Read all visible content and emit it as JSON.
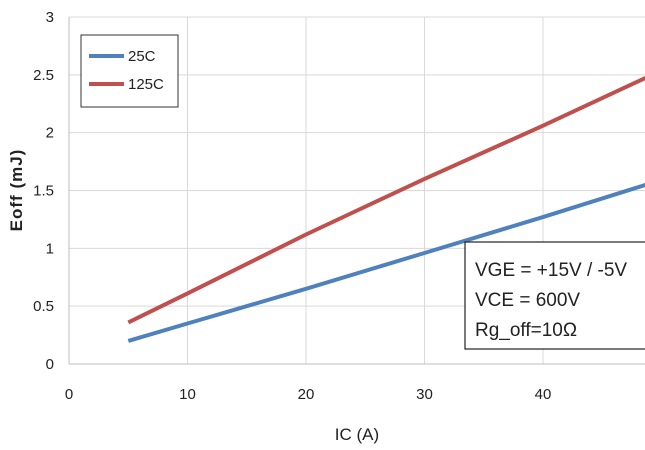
{
  "chart_data": {
    "type": "line",
    "xlabel": "IC (A)",
    "ylabel": "Eoff (mJ)",
    "xlim": [
      0,
      49
    ],
    "ylim": [
      0,
      3
    ],
    "xticks": [
      "0",
      "10",
      "20",
      "30",
      "40"
    ],
    "yticks": [
      "0",
      "0.5",
      "1",
      "1.5",
      "2",
      "2.5",
      "3"
    ],
    "grid": true,
    "legend_position": "top-left",
    "series": [
      {
        "name": "25C",
        "color": "#4f81bd",
        "x": [
          5,
          10,
          20,
          30,
          40,
          49
        ],
        "y": [
          0.2,
          0.35,
          0.65,
          0.96,
          1.27,
          1.56
        ]
      },
      {
        "name": "125C",
        "color": "#c0504d",
        "x": [
          5,
          10,
          20,
          30,
          40,
          49
        ],
        "y": [
          0.36,
          0.61,
          1.12,
          1.6,
          2.06,
          2.49
        ]
      }
    ],
    "annotation": [
      "VGE = +15V / -5V",
      "VCE = 600V",
      "Rg_off=10Ω"
    ]
  }
}
